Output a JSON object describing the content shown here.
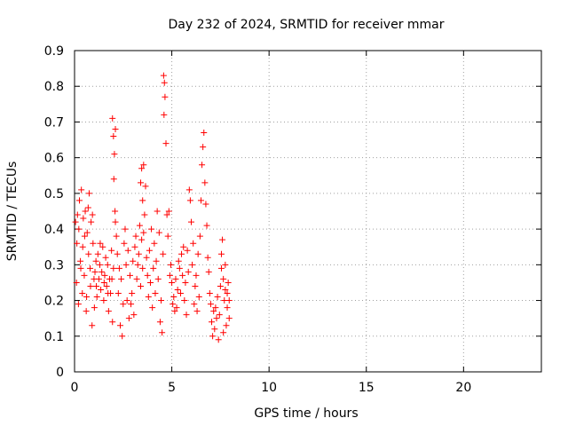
{
  "chart_data": {
    "type": "scatter",
    "title": "Day 232 of 2024, SRMTID for receiver mmar",
    "xlabel": "GPS time / hours",
    "ylabel": "SRMTID / TECUs",
    "xlim": [
      0,
      24
    ],
    "ylim": [
      0,
      0.9
    ],
    "xticks": [
      0,
      5,
      10,
      15,
      20
    ],
    "xtick_labels": [
      "0",
      "5",
      "10",
      "15",
      "20"
    ],
    "yticks": [
      0,
      0.1,
      0.2,
      0.3,
      0.4,
      0.5,
      0.6,
      0.7,
      0.8,
      0.9
    ],
    "ytick_labels": [
      "0",
      "0.1",
      "0.2",
      "0.3",
      "0.4",
      "0.5",
      "0.6",
      "0.7",
      "0.8",
      "0.9"
    ],
    "grid": true,
    "marker": "+",
    "series": [
      {
        "name": "SRMTID",
        "color": "#ff0000",
        "points": [
          [
            0.05,
            0.42
          ],
          [
            0.1,
            0.25
          ],
          [
            0.15,
            0.44
          ],
          [
            0.2,
            0.19
          ],
          [
            0.25,
            0.48
          ],
          [
            0.3,
            0.31
          ],
          [
            0.35,
            0.51
          ],
          [
            0.4,
            0.22
          ],
          [
            0.45,
            0.43
          ],
          [
            0.5,
            0.27
          ],
          [
            0.55,
            0.45
          ],
          [
            0.6,
            0.17
          ],
          [
            0.65,
            0.39
          ],
          [
            0.7,
            0.46
          ],
          [
            0.75,
            0.5
          ],
          [
            0.8,
            0.29
          ],
          [
            0.85,
            0.42
          ],
          [
            0.9,
            0.13
          ],
          [
            0.95,
            0.36
          ],
          [
            1.0,
            0.26
          ],
          [
            0.12,
            0.36
          ],
          [
            0.22,
            0.4
          ],
          [
            0.32,
            0.29
          ],
          [
            0.42,
            0.35
          ],
          [
            0.52,
            0.38
          ],
          [
            0.62,
            0.21
          ],
          [
            0.72,
            0.33
          ],
          [
            0.82,
            0.24
          ],
          [
            0.92,
            0.44
          ],
          [
            1.02,
            0.18
          ],
          [
            1.05,
            0.28
          ],
          [
            1.1,
            0.31
          ],
          [
            1.15,
            0.21
          ],
          [
            1.2,
            0.33
          ],
          [
            1.25,
            0.26
          ],
          [
            1.3,
            0.3
          ],
          [
            1.35,
            0.23
          ],
          [
            1.4,
            0.28
          ],
          [
            1.45,
            0.35
          ],
          [
            1.5,
            0.2
          ],
          [
            1.55,
            0.27
          ],
          [
            1.6,
            0.32
          ],
          [
            1.65,
            0.24
          ],
          [
            1.7,
            0.3
          ],
          [
            1.75,
            0.17
          ],
          [
            1.8,
            0.26
          ],
          [
            1.85,
            0.22
          ],
          [
            1.9,
            0.34
          ],
          [
            1.95,
            0.14
          ],
          [
            2.0,
            0.29
          ],
          [
            1.12,
            0.24
          ],
          [
            1.32,
            0.36
          ],
          [
            1.52,
            0.25
          ],
          [
            1.72,
            0.22
          ],
          [
            1.92,
            0.26
          ],
          [
            1.95,
            0.71
          ],
          [
            2.0,
            0.66
          ],
          [
            2.05,
            0.61
          ],
          [
            2.1,
            0.68
          ],
          [
            2.02,
            0.54
          ],
          [
            2.08,
            0.45
          ],
          [
            2.1,
            0.42
          ],
          [
            2.15,
            0.38
          ],
          [
            2.2,
            0.33
          ],
          [
            2.25,
            0.22
          ],
          [
            2.3,
            0.29
          ],
          [
            2.35,
            0.13
          ],
          [
            2.4,
            0.26
          ],
          [
            2.45,
            0.1
          ],
          [
            2.5,
            0.19
          ],
          [
            2.55,
            0.36
          ],
          [
            2.6,
            0.4
          ],
          [
            2.65,
            0.3
          ],
          [
            2.7,
            0.2
          ],
          [
            2.75,
            0.34
          ],
          [
            2.8,
            0.15
          ],
          [
            2.85,
            0.27
          ],
          [
            2.9,
            0.19
          ],
          [
            2.95,
            0.22
          ],
          [
            3.0,
            0.31
          ],
          [
            3.05,
            0.16
          ],
          [
            3.1,
            0.35
          ],
          [
            3.15,
            0.38
          ],
          [
            3.2,
            0.26
          ],
          [
            3.25,
            0.3
          ],
          [
            3.3,
            0.33
          ],
          [
            3.35,
            0.41
          ],
          [
            3.4,
            0.24
          ],
          [
            3.45,
            0.37
          ],
          [
            3.5,
            0.29
          ],
          [
            3.4,
            0.53
          ],
          [
            3.45,
            0.57
          ],
          [
            3.5,
            0.48
          ],
          [
            3.55,
            0.58
          ],
          [
            3.6,
            0.44
          ],
          [
            3.65,
            0.52
          ],
          [
            3.55,
            0.39
          ],
          [
            3.7,
            0.32
          ],
          [
            3.75,
            0.27
          ],
          [
            3.8,
            0.21
          ],
          [
            3.85,
            0.34
          ],
          [
            3.9,
            0.25
          ],
          [
            3.95,
            0.4
          ],
          [
            4.0,
            0.18
          ],
          [
            4.05,
            0.29
          ],
          [
            4.1,
            0.36
          ],
          [
            4.15,
            0.22
          ],
          [
            4.2,
            0.31
          ],
          [
            4.25,
            0.45
          ],
          [
            4.3,
            0.26
          ],
          [
            4.35,
            0.39
          ],
          [
            4.4,
            0.14
          ],
          [
            4.45,
            0.2
          ],
          [
            4.5,
            0.11
          ],
          [
            4.55,
            0.33
          ],
          [
            4.6,
            0.72
          ],
          [
            4.62,
            0.81
          ],
          [
            4.58,
            0.83
          ],
          [
            4.65,
            0.77
          ],
          [
            4.7,
            0.64
          ],
          [
            4.75,
            0.44
          ],
          [
            4.8,
            0.38
          ],
          [
            4.85,
            0.45
          ],
          [
            4.9,
            0.27
          ],
          [
            4.95,
            0.3
          ],
          [
            5.0,
            0.25
          ],
          [
            5.05,
            0.19
          ],
          [
            5.1,
            0.21
          ],
          [
            5.15,
            0.17
          ],
          [
            5.2,
            0.26
          ],
          [
            5.25,
            0.18
          ],
          [
            5.3,
            0.23
          ],
          [
            5.35,
            0.31
          ],
          [
            5.4,
            0.29
          ],
          [
            5.45,
            0.22
          ],
          [
            5.5,
            0.33
          ],
          [
            5.55,
            0.27
          ],
          [
            5.6,
            0.35
          ],
          [
            5.65,
            0.2
          ],
          [
            5.7,
            0.25
          ],
          [
            5.75,
            0.16
          ],
          [
            5.8,
            0.34
          ],
          [
            5.85,
            0.28
          ],
          [
            5.9,
            0.51
          ],
          [
            5.95,
            0.48
          ],
          [
            6.0,
            0.42
          ],
          [
            6.05,
            0.3
          ],
          [
            6.1,
            0.36
          ],
          [
            6.15,
            0.19
          ],
          [
            6.2,
            0.24
          ],
          [
            6.25,
            0.27
          ],
          [
            6.3,
            0.17
          ],
          [
            6.35,
            0.33
          ],
          [
            6.4,
            0.21
          ],
          [
            6.45,
            0.38
          ],
          [
            6.5,
            0.48
          ],
          [
            6.55,
            0.58
          ],
          [
            6.6,
            0.63
          ],
          [
            6.65,
            0.67
          ],
          [
            6.7,
            0.53
          ],
          [
            6.75,
            0.47
          ],
          [
            6.8,
            0.41
          ],
          [
            6.85,
            0.32
          ],
          [
            6.9,
            0.28
          ],
          [
            6.95,
            0.22
          ],
          [
            7.0,
            0.19
          ],
          [
            7.05,
            0.14
          ],
          [
            7.1,
            0.1
          ],
          [
            7.15,
            0.17
          ],
          [
            7.2,
            0.12
          ],
          [
            7.25,
            0.18
          ],
          [
            7.3,
            0.15
          ],
          [
            7.35,
            0.21
          ],
          [
            7.4,
            0.09
          ],
          [
            7.45,
            0.16
          ],
          [
            7.5,
            0.24
          ],
          [
            7.55,
            0.33
          ],
          [
            7.6,
            0.37
          ],
          [
            7.65,
            0.26
          ],
          [
            7.7,
            0.2
          ],
          [
            7.75,
            0.23
          ],
          [
            7.8,
            0.13
          ],
          [
            7.85,
            0.18
          ],
          [
            7.9,
            0.25
          ],
          [
            7.95,
            0.15
          ],
          [
            7.55,
            0.29
          ],
          [
            7.65,
            0.11
          ],
          [
            7.75,
            0.3
          ],
          [
            7.85,
            0.22
          ],
          [
            7.95,
            0.2
          ]
        ]
      }
    ]
  }
}
